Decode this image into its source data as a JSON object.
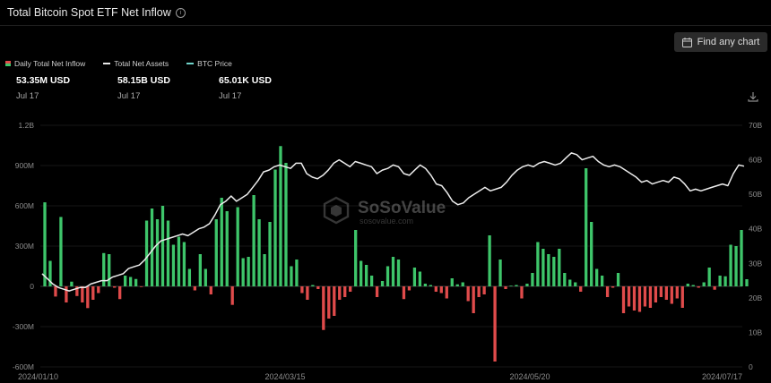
{
  "header": {
    "title": "Total Bitcoin Spot ETF Net Inflow",
    "find_chart_label": "Find any chart"
  },
  "legend": [
    {
      "label": "Daily Total Net Inflow"
    },
    {
      "label": "Total Net Assets"
    },
    {
      "label": "BTC Price"
    }
  ],
  "stats": [
    {
      "value": "53.35M USD",
      "date": "Jul 17"
    },
    {
      "value": "58.15B USD",
      "date": "Jul 17"
    },
    {
      "value": "65.01K USD",
      "date": "Jul 17"
    }
  ],
  "watermark": {
    "name": "SoSoValue",
    "sub": "sosovalue.com"
  },
  "colors": {
    "positive": "#3ec56a",
    "negative": "#e04b4b",
    "line": "#ececec",
    "axis": "#8c8c8c"
  },
  "icons": {
    "info": "info-icon",
    "find": "calendar-icon",
    "download": "download-icon"
  },
  "chart_data": {
    "type": "bar",
    "left_axis": {
      "ticks": [
        "1.2B",
        "900M",
        "600M",
        "300M",
        "0",
        "-300M",
        "-600M"
      ],
      "ylim": [
        -600,
        1200
      ],
      "unit": "M USD"
    },
    "right_axis": {
      "ticks": [
        "70B",
        "60B",
        "50B",
        "40B",
        "30B",
        "20B",
        "10B",
        "0"
      ],
      "ylim": [
        0,
        70
      ],
      "unit": "B USD"
    },
    "x_ticks": [
      "2024/01/10",
      "2024/03/15",
      "2024/05/20",
      "2024/07/17"
    ],
    "series": [
      {
        "name": "Daily Total Net Inflow",
        "type": "bar",
        "values": [
          626,
          190,
          -76,
          517,
          -120,
          35,
          -72,
          -120,
          -162,
          -100,
          -50,
          248,
          240,
          -10,
          -95,
          80,
          70,
          55,
          -5,
          490,
          580,
          500,
          600,
          490,
          310,
          370,
          330,
          130,
          -30,
          240,
          130,
          -60,
          500,
          660,
          560,
          -138,
          590,
          210,
          220,
          680,
          500,
          240,
          480,
          870,
          1045,
          920,
          150,
          200,
          -50,
          -100,
          10,
          -20,
          -325,
          -240,
          -220,
          -100,
          -80,
          -40,
          420,
          190,
          160,
          80,
          -80,
          40,
          150,
          220,
          200,
          -95,
          -30,
          140,
          110,
          20,
          10,
          -40,
          -50,
          -90,
          60,
          15,
          30,
          -110,
          -200,
          -80,
          -60,
          380,
          -560,
          200,
          -20,
          5,
          10,
          -90,
          20,
          100,
          330,
          280,
          240,
          220,
          280,
          100,
          50,
          30,
          -40,
          880,
          480,
          130,
          80,
          -80,
          -10,
          100,
          -200,
          -150,
          -180,
          -190,
          -150,
          -160,
          -120,
          -80,
          -100,
          -130,
          -90,
          -160,
          20,
          10,
          -10,
          30,
          140,
          -25,
          80,
          75,
          310,
          300,
          420,
          53.35
        ]
      },
      {
        "name": "Total Net Assets",
        "type": "line",
        "values": [
          27,
          25.5,
          24,
          23,
          22.5,
          22,
          22.5,
          23,
          23,
          24,
          24.5,
          25,
          25,
          26,
          26.5,
          27,
          28.5,
          29,
          29.5,
          31,
          33,
          35,
          36.5,
          37,
          37.5,
          38,
          38.5,
          38,
          39,
          40,
          40.5,
          41.5,
          44,
          47,
          48,
          49.5,
          48,
          49,
          50,
          52,
          54,
          56.5,
          57,
          58,
          58.5,
          58,
          57.5,
          59,
          59,
          56,
          55,
          54.5,
          55.5,
          57,
          59,
          60,
          59,
          58,
          59.5,
          59,
          58.5,
          58,
          56,
          57,
          57.5,
          58.5,
          58,
          56,
          55.5,
          57,
          58.5,
          57.5,
          55.5,
          53,
          52.5,
          50.5,
          48,
          47,
          47.5,
          49,
          50,
          51,
          52,
          51,
          51.5,
          52,
          53.5,
          55.5,
          57,
          58,
          58.5,
          58,
          59,
          59.5,
          59,
          58.5,
          59,
          60.5,
          62,
          61.5,
          60,
          60.5,
          61,
          59.5,
          58.5,
          58,
          58.5,
          58,
          57,
          56,
          55,
          53.5,
          54,
          53,
          53.5,
          54,
          53.5,
          55,
          54.5,
          53,
          51,
          51.5,
          51,
          51.5,
          52,
          52.5,
          53,
          52.5,
          56,
          58.5,
          58.15
        ]
      }
    ]
  }
}
